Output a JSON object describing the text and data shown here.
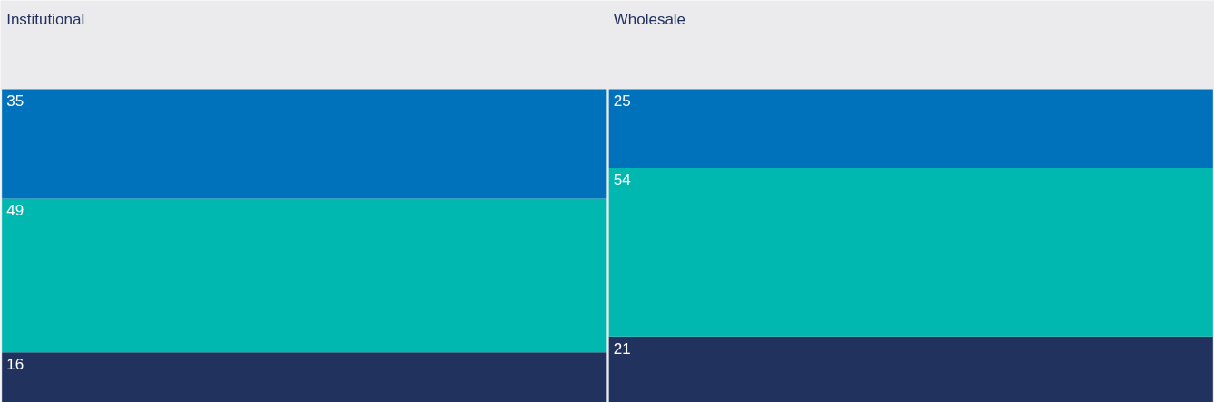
{
  "chart_data": {
    "type": "bar",
    "stacked": true,
    "data_labels": true,
    "categories": [
      "Institutional",
      "Wholesale"
    ],
    "series": [
      {
        "color": "#21325e",
        "values": [
          16,
          21
        ]
      },
      {
        "color": "#00b8b0",
        "values": [
          49,
          54
        ]
      },
      {
        "color": "#0072bc",
        "values": [
          35,
          25
        ]
      }
    ]
  }
}
